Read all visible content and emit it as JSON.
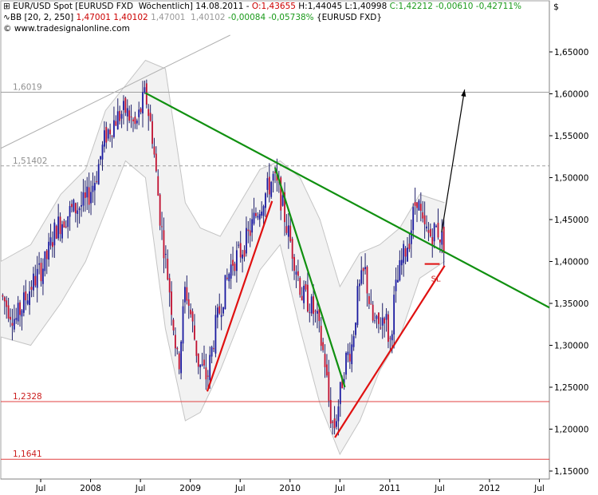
{
  "header": {
    "line1": {
      "symbol": "EUR/USD Spot [EURUSD FXD  Wöchentlich] 14.08.2011 - ",
      "open": "O:1,43655",
      "high_low": " H:1,44045 L:1,40998 ",
      "close": "C:1,42212 -0,00610 -0,42711%"
    },
    "line2": {
      "name": "BB [20, 2, 250] ",
      "upper": "1,47001",
      "lower": " 1,40102 ",
      "mid": "1,47001  1,40102 ",
      "change": "-0,00084 -0,05738%",
      "source": " {EURUSD FXD}"
    },
    "line3": "© www.tradesignalonline.com"
  },
  "currency_label": "$",
  "colors": {
    "candle_up": "#1a1aa0",
    "candle_down": "#c01030",
    "band_fill": "#f2f2f2",
    "band_line": "#c4c4c4",
    "green_trend": "#109010",
    "red_trend": "#e01010",
    "open_text": "#cc0000",
    "close_text": "#1a9a1a",
    "lower_text": "#cc0000",
    "mid_text": "#999999"
  },
  "chart_data": {
    "type": "candlestick",
    "y_axis": {
      "min": 1.14,
      "max": 1.67,
      "ticks": [
        "1,15000",
        "1,20000",
        "1,25000",
        "1,30000",
        "1,35000",
        "1,40000",
        "1,45000",
        "1,50000",
        "1,55000",
        "1,60000",
        "1,65000"
      ],
      "tick_values": [
        1.15,
        1.2,
        1.25,
        1.3,
        1.35,
        1.4,
        1.45,
        1.5,
        1.55,
        1.6,
        1.65
      ]
    },
    "x_axis": {
      "labels": [
        "Jul",
        "2008",
        "Jul",
        "2009",
        "Jul",
        "2010",
        "Jul",
        "2011",
        "Jul",
        "2012",
        "Jul"
      ],
      "label_dates": [
        2007.5,
        2008.0,
        2008.5,
        2009.0,
        2009.5,
        2010.0,
        2010.5,
        2011.0,
        2011.5,
        2012.0,
        2012.5
      ],
      "start": 2007.1,
      "end": 2012.6
    },
    "price_path": [
      [
        2007.1,
        1.36
      ],
      [
        2007.25,
        1.33
      ],
      [
        2007.4,
        1.37
      ],
      [
        2007.55,
        1.4
      ],
      [
        2007.65,
        1.44
      ],
      [
        2007.8,
        1.46
      ],
      [
        2007.95,
        1.47
      ],
      [
        2008.05,
        1.5
      ],
      [
        2008.15,
        1.55
      ],
      [
        2008.25,
        1.57
      ],
      [
        2008.35,
        1.58
      ],
      [
        2008.45,
        1.56
      ],
      [
        2008.55,
        1.6
      ],
      [
        2008.62,
        1.55
      ],
      [
        2008.7,
        1.45
      ],
      [
        2008.8,
        1.36
      ],
      [
        2008.88,
        1.27
      ],
      [
        2008.95,
        1.37
      ],
      [
        2009.0,
        1.34
      ],
      [
        2009.08,
        1.28
      ],
      [
        2009.17,
        1.26
      ],
      [
        2009.25,
        1.32
      ],
      [
        2009.33,
        1.36
      ],
      [
        2009.42,
        1.4
      ],
      [
        2009.5,
        1.41
      ],
      [
        2009.58,
        1.43
      ],
      [
        2009.67,
        1.46
      ],
      [
        2009.75,
        1.48
      ],
      [
        2009.83,
        1.5
      ],
      [
        2009.9,
        1.48
      ],
      [
        2009.97,
        1.44
      ],
      [
        2010.05,
        1.4
      ],
      [
        2010.12,
        1.36
      ],
      [
        2010.2,
        1.35
      ],
      [
        2010.27,
        1.33
      ],
      [
        2010.35,
        1.28
      ],
      [
        2010.4,
        1.22
      ],
      [
        2010.44,
        1.2
      ],
      [
        2010.5,
        1.24
      ],
      [
        2010.55,
        1.28
      ],
      [
        2010.62,
        1.3
      ],
      [
        2010.68,
        1.36
      ],
      [
        2010.75,
        1.39
      ],
      [
        2010.82,
        1.33
      ],
      [
        2010.88,
        1.32
      ],
      [
        2010.95,
        1.34
      ],
      [
        2011.0,
        1.3
      ],
      [
        2011.05,
        1.36
      ],
      [
        2011.12,
        1.4
      ],
      [
        2011.2,
        1.43
      ],
      [
        2011.27,
        1.48
      ],
      [
        2011.33,
        1.44
      ],
      [
        2011.4,
        1.43
      ],
      [
        2011.47,
        1.44
      ],
      [
        2011.55,
        1.42
      ]
    ],
    "bollinger": {
      "upper": [
        [
          2007.1,
          1.4
        ],
        [
          2007.4,
          1.42
        ],
        [
          2007.7,
          1.48
        ],
        [
          2007.95,
          1.51
        ],
        [
          2008.15,
          1.58
        ],
        [
          2008.35,
          1.61
        ],
        [
          2008.55,
          1.64
        ],
        [
          2008.75,
          1.63
        ],
        [
          2008.95,
          1.47
        ],
        [
          2009.1,
          1.44
        ],
        [
          2009.3,
          1.43
        ],
        [
          2009.5,
          1.47
        ],
        [
          2009.7,
          1.51
        ],
        [
          2009.9,
          1.52
        ],
        [
          2010.1,
          1.5
        ],
        [
          2010.3,
          1.45
        ],
        [
          2010.5,
          1.37
        ],
        [
          2010.7,
          1.41
        ],
        [
          2010.9,
          1.42
        ],
        [
          2011.1,
          1.44
        ],
        [
          2011.3,
          1.48
        ],
        [
          2011.55,
          1.47
        ]
      ],
      "lower": [
        [
          2007.1,
          1.31
        ],
        [
          2007.4,
          1.3
        ],
        [
          2007.7,
          1.35
        ],
        [
          2007.95,
          1.4
        ],
        [
          2008.15,
          1.46
        ],
        [
          2008.35,
          1.52
        ],
        [
          2008.55,
          1.5
        ],
        [
          2008.75,
          1.32
        ],
        [
          2008.95,
          1.21
        ],
        [
          2009.1,
          1.22
        ],
        [
          2009.3,
          1.27
        ],
        [
          2009.5,
          1.33
        ],
        [
          2009.7,
          1.39
        ],
        [
          2009.9,
          1.42
        ],
        [
          2010.1,
          1.32
        ],
        [
          2010.3,
          1.23
        ],
        [
          2010.5,
          1.17
        ],
        [
          2010.7,
          1.21
        ],
        [
          2010.9,
          1.27
        ],
        [
          2011.1,
          1.31
        ],
        [
          2011.3,
          1.38
        ],
        [
          2011.55,
          1.4
        ]
      ]
    },
    "levels": [
      {
        "label": "1,6019",
        "value": 1.6019,
        "style": "solid",
        "color": "#a0a0a0"
      },
      {
        "label": "1,51402",
        "value": 1.51402,
        "style": "dashed",
        "color": "#a0a0a0"
      },
      {
        "label": "1,2328",
        "value": 1.2328,
        "style": "solid",
        "color": "#e04040"
      },
      {
        "label": "1,1641",
        "value": 1.1641,
        "style": "solid",
        "color": "#e04040"
      }
    ],
    "trendlines": [
      {
        "color": "green",
        "from": [
          2008.55,
          1.601
        ],
        "to": [
          2012.6,
          1.345
        ]
      },
      {
        "color": "green",
        "from": [
          2009.85,
          1.512
        ],
        "to": [
          2010.55,
          1.25
        ]
      },
      {
        "color": "red",
        "from": [
          2009.17,
          1.245
        ],
        "to": [
          2009.82,
          1.472
        ]
      },
      {
        "color": "red",
        "from": [
          2010.45,
          1.19
        ],
        "to": [
          2011.55,
          1.395
        ]
      },
      {
        "color": "gray",
        "from": [
          2007.1,
          1.535
        ],
        "to": [
          2009.4,
          1.67
        ]
      }
    ],
    "stop_loss": {
      "label": "SL",
      "value": 1.397,
      "x_from": 2011.35,
      "x_to": 2011.5
    },
    "arrow": {
      "from": [
        2011.52,
        1.435
      ],
      "to": [
        2011.75,
        1.605
      ]
    }
  }
}
